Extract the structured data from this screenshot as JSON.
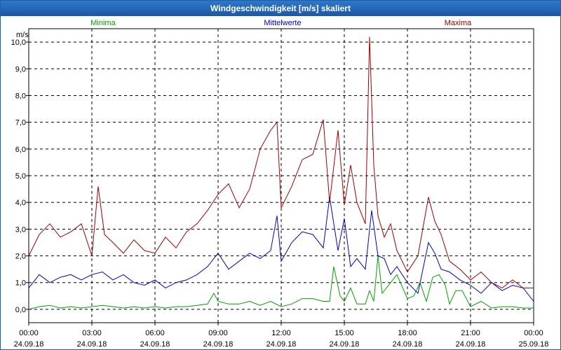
{
  "window": {
    "title": "Windgeschwindigkeit [m/s] skaliert"
  },
  "chart_data": {
    "type": "line",
    "title": "Windgeschwindigkeit [m/s] skaliert",
    "ylabel": "m/s",
    "ylim": [
      -0.5,
      10.5
    ],
    "xlim": [
      0,
      24
    ],
    "grid": true,
    "y_ticks": [
      {
        "value": 0,
        "label": "0,0"
      },
      {
        "value": 1,
        "label": "1,0"
      },
      {
        "value": 2,
        "label": "2,0"
      },
      {
        "value": 3,
        "label": "3,0"
      },
      {
        "value": 4,
        "label": "4,0"
      },
      {
        "value": 5,
        "label": "5,0"
      },
      {
        "value": 6,
        "label": "6,0"
      },
      {
        "value": 7,
        "label": "7,0"
      },
      {
        "value": 8,
        "label": "8,0"
      },
      {
        "value": 9,
        "label": "9,0"
      },
      {
        "value": 10,
        "label": "10,0"
      }
    ],
    "x_ticks": [
      {
        "value": 0,
        "time": "00:00",
        "date": "24.09.18"
      },
      {
        "value": 3,
        "time": "03:00",
        "date": "24.09.18"
      },
      {
        "value": 6,
        "time": "06:00",
        "date": "24.09.18"
      },
      {
        "value": 9,
        "time": "09:00",
        "date": "24.09.18"
      },
      {
        "value": 12,
        "time": "12:00",
        "date": "24.09.18"
      },
      {
        "value": 15,
        "time": "15:00",
        "date": "24.09.18"
      },
      {
        "value": 18,
        "time": "18:00",
        "date": "24.09.18"
      },
      {
        "value": 21,
        "time": "21:00",
        "date": "24.09.18"
      },
      {
        "value": 24,
        "time": "00:00",
        "date": "25.09.18"
      }
    ],
    "series": [
      {
        "name": "Minima",
        "color": "#00a000",
        "legend": "left",
        "x": [
          0,
          0.5,
          1,
          1.5,
          2,
          2.5,
          3,
          3.5,
          4,
          4.5,
          5,
          5.5,
          6,
          6.5,
          7,
          7.5,
          8,
          8.5,
          8.8,
          9,
          9.5,
          10,
          10.5,
          11,
          11.5,
          12,
          12.5,
          13,
          13.5,
          14,
          14.3,
          14.5,
          14.8,
          15,
          15.3,
          15.6,
          16,
          16.2,
          16.4,
          16.6,
          16.8,
          17,
          17.5,
          18,
          18.3,
          18.6,
          18.9,
          19.2,
          19.5,
          19.8,
          20,
          20.3,
          20.6,
          21,
          21.5,
          22,
          22.5,
          23,
          23.5,
          24
        ],
        "values": [
          0,
          0.1,
          0.15,
          0.05,
          0.1,
          0.05,
          0.1,
          0.15,
          0.1,
          0.05,
          0.1,
          0.05,
          0.1,
          0.05,
          0.1,
          0.1,
          0.15,
          0.2,
          0.6,
          0.3,
          0.2,
          0.2,
          0.3,
          0.15,
          0.3,
          0.1,
          0.2,
          0.4,
          0.4,
          0.3,
          0.3,
          1.6,
          0.5,
          0.3,
          0.8,
          0.2,
          0.2,
          0.7,
          0.3,
          2.0,
          0.6,
          0.8,
          1.3,
          0.4,
          0.5,
          1.0,
          0.3,
          1.2,
          1.3,
          0.9,
          0.2,
          0.7,
          0.7,
          0.1,
          0.3,
          0.05,
          0.1,
          0.1,
          0.05,
          0.05
        ]
      },
      {
        "name": "Mittelwerte",
        "color": "#0000c8",
        "legend": "center",
        "x": [
          0,
          0.5,
          1,
          1.5,
          2,
          2.5,
          3,
          3.5,
          4,
          4.5,
          5,
          5.5,
          6,
          6.5,
          7,
          7.5,
          8,
          8.5,
          9,
          9.5,
          10,
          10.5,
          11,
          11.5,
          11.8,
          12,
          12.5,
          13,
          13.5,
          14,
          14.3,
          14.7,
          15,
          15.3,
          15.6,
          16,
          16.3,
          16.6,
          16.9,
          17.2,
          17.5,
          18,
          18.5,
          19,
          19.3,
          19.6,
          20,
          20.5,
          21,
          21.5,
          22,
          22.5,
          23,
          23.5,
          24
        ],
        "values": [
          0.8,
          1.3,
          1.0,
          1.2,
          1.3,
          1.1,
          1.3,
          1.4,
          1.1,
          1.3,
          1.0,
          0.9,
          1.1,
          0.8,
          1.0,
          1.1,
          1.3,
          1.6,
          2.1,
          1.5,
          1.8,
          2.1,
          1.9,
          2.2,
          3.5,
          1.8,
          2.5,
          2.9,
          2.8,
          2.3,
          4.2,
          2.2,
          3.4,
          1.6,
          1.9,
          1.5,
          3.7,
          2.0,
          1.9,
          1.3,
          1.6,
          1.0,
          0.6,
          2.5,
          2.1,
          1.5,
          1.4,
          1.1,
          0.9,
          0.6,
          1.0,
          0.7,
          0.9,
          0.8,
          0.3
        ]
      },
      {
        "name": "Maxima",
        "color": "#a00000",
        "legend": "right",
        "x": [
          0,
          0.5,
          1,
          1.5,
          2,
          2.5,
          3,
          3.3,
          3.6,
          4,
          4.5,
          5,
          5.5,
          6,
          6.5,
          7,
          7.5,
          8,
          8.5,
          9,
          9.5,
          10,
          10.5,
          11,
          11.5,
          11.8,
          12,
          12.5,
          13,
          13.5,
          14,
          14.3,
          14.7,
          15,
          15.3,
          15.6,
          16,
          16.2,
          16.4,
          16.6,
          16.9,
          17.2,
          17.5,
          18,
          18.5,
          19,
          19.3,
          19.6,
          20,
          20.5,
          21,
          21.5,
          22,
          22.5,
          23,
          23.5,
          24
        ],
        "values": [
          2.0,
          2.8,
          3.2,
          2.7,
          2.9,
          3.2,
          2.0,
          4.6,
          2.8,
          2.5,
          2.1,
          2.6,
          2.2,
          2.1,
          2.7,
          2.3,
          2.9,
          3.2,
          3.7,
          4.3,
          4.7,
          3.8,
          4.5,
          6.0,
          6.7,
          7.0,
          3.8,
          4.6,
          5.6,
          5.8,
          7.1,
          4.0,
          6.7,
          3.9,
          5.4,
          4.0,
          3.2,
          10.2,
          5.4,
          3.5,
          2.7,
          3.2,
          2.2,
          1.4,
          2.0,
          4.2,
          3.3,
          2.8,
          1.8,
          1.5,
          1.1,
          1.4,
          1.0,
          0.8,
          1.1,
          0.8,
          0.8
        ]
      }
    ]
  }
}
